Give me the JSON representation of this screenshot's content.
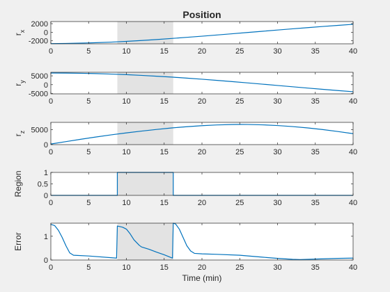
{
  "figure": {
    "title": "Position",
    "background": "#f0f0f0",
    "line_color": "#0072bd",
    "region_fill": "#e3e3e3",
    "region_interval": [
      8.8,
      16.2
    ]
  },
  "chart_data": [
    {
      "type": "line",
      "ylabel": "r",
      "ylabel_sub": "x",
      "xlim": [
        0,
        40
      ],
      "ylim": [
        -2700,
        2500
      ],
      "xticks": [
        0,
        5,
        10,
        15,
        20,
        25,
        30,
        35,
        40
      ],
      "yticks": [
        -2000,
        0,
        2000
      ],
      "ytick_labels": [
        "-2000",
        "0",
        "2000"
      ],
      "series": [
        {
          "x": [
            0,
            2,
            4,
            6,
            8,
            10,
            12,
            14,
            16,
            18,
            20,
            22,
            24,
            26,
            28,
            30,
            32,
            34,
            36,
            38,
            40
          ],
          "y": [
            -2650,
            -2610,
            -2540,
            -2440,
            -2300,
            -2130,
            -1930,
            -1700,
            -1450,
            -1190,
            -920,
            -640,
            -350,
            -60,
            230,
            520,
            800,
            1080,
            1350,
            1610,
            1860
          ]
        }
      ]
    },
    {
      "type": "line",
      "ylabel": "r",
      "ylabel_sub": "y",
      "xlim": [
        0,
        40
      ],
      "ylim": [
        -5200,
        7000
      ],
      "xticks": [
        0,
        5,
        10,
        15,
        20,
        25,
        30,
        35,
        40
      ],
      "yticks": [
        -5000,
        0,
        5000
      ],
      "ytick_labels": [
        "-5000",
        "0",
        "5000"
      ],
      "series": [
        {
          "x": [
            0,
            2,
            4,
            6,
            8,
            10,
            12,
            14,
            16,
            18,
            20,
            22,
            24,
            26,
            28,
            30,
            32,
            34,
            36,
            38,
            40
          ],
          "y": [
            6600,
            6560,
            6440,
            6250,
            5990,
            5660,
            5260,
            4800,
            4280,
            3710,
            3090,
            2430,
            1740,
            1020,
            290,
            -450,
            -1190,
            -1920,
            -2640,
            -3330,
            -4000
          ]
        }
      ]
    },
    {
      "type": "line",
      "ylabel": "r",
      "ylabel_sub": "z",
      "xlim": [
        0,
        40
      ],
      "ylim": [
        0,
        7400
      ],
      "xticks": [
        0,
        5,
        10,
        15,
        20,
        25,
        30,
        35,
        40
      ],
      "yticks": [
        0,
        5000
      ],
      "ytick_labels": [
        "0",
        "5000"
      ],
      "series": [
        {
          "x": [
            0,
            2,
            4,
            6,
            8,
            10,
            12,
            14,
            16,
            18,
            20,
            22,
            24,
            25,
            26,
            28,
            30,
            32,
            34,
            36,
            38,
            40
          ],
          "y": [
            200,
            1000,
            1800,
            2550,
            3250,
            3900,
            4500,
            5050,
            5550,
            5950,
            6300,
            6550,
            6680,
            6700,
            6690,
            6580,
            6350,
            6000,
            5550,
            5000,
            4350,
            3650
          ]
        }
      ]
    },
    {
      "type": "line",
      "ylabel": "Region",
      "xlim": [
        0,
        40
      ],
      "ylim": [
        0,
        1
      ],
      "xticks": [
        0,
        5,
        10,
        15,
        20,
        25,
        30,
        35,
        40
      ],
      "yticks": [
        0,
        0.5,
        1
      ],
      "ytick_labels": [
        "0",
        "0.5",
        "1"
      ],
      "series": [
        {
          "x": [
            0,
            8.8,
            8.8,
            16.2,
            16.2,
            40
          ],
          "y": [
            0,
            0,
            1,
            1,
            0,
            0
          ]
        }
      ]
    },
    {
      "type": "line",
      "ylabel": "Error",
      "xlabel": "Time (min)",
      "xlim": [
        0,
        40
      ],
      "ylim": [
        0,
        1.55
      ],
      "xticks": [
        0,
        5,
        10,
        15,
        20,
        25,
        30,
        35,
        40
      ],
      "yticks": [
        0,
        1
      ],
      "ytick_labels": [
        "0",
        "1"
      ],
      "series": [
        {
          "x": [
            0,
            0.5,
            1,
            1.5,
            2,
            2.5,
            3,
            5,
            8.7,
            8.8,
            9.5,
            10,
            10.5,
            11,
            11.7,
            12,
            13,
            14,
            15,
            16.1,
            16.2,
            16.5,
            17,
            17.5,
            18,
            18.5,
            19,
            20,
            22,
            25,
            28,
            30,
            32,
            33,
            35,
            38,
            40
          ],
          "y": [
            1.5,
            1.45,
            1.25,
            0.95,
            0.6,
            0.3,
            0.2,
            0.17,
            0.08,
            1.43,
            1.38,
            1.3,
            1.1,
            0.85,
            0.62,
            0.55,
            0.45,
            0.33,
            0.22,
            0.08,
            1.55,
            1.52,
            1.3,
            0.95,
            0.6,
            0.38,
            0.28,
            0.26,
            0.24,
            0.2,
            0.12,
            0.07,
            0.03,
            0.02,
            0.04,
            0.07,
            0.08
          ]
        }
      ]
    }
  ]
}
